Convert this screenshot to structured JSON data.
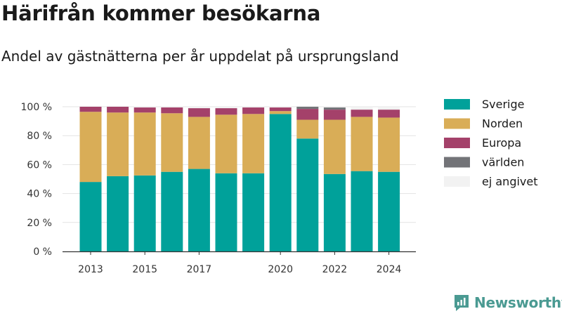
{
  "title": "Härifrån kommer besökarna",
  "subtitle": "Andel av gästnätterna per år uppdelat på ursprungsland",
  "brand": {
    "name": "Newsworthy",
    "icon": "bar-chart-logo-icon"
  },
  "chart_data": {
    "type": "bar",
    "stacked": true,
    "categories": [
      "2013",
      "2014",
      "2015",
      "2016",
      "2017",
      "2018",
      "2019",
      "2020",
      "2021",
      "2022",
      "2023",
      "2024"
    ],
    "x_tick_labels": [
      "2013",
      "",
      "2015",
      "",
      "2017",
      "",
      "",
      "2020",
      "",
      "2022",
      "",
      "2024"
    ],
    "y_tick_labels": [
      "0 %",
      "20 %",
      "40 %",
      "60 %",
      "80 %",
      "100 %"
    ],
    "ylim": [
      0,
      100
    ],
    "grid": true,
    "legend_position": "right",
    "series": [
      {
        "name": "Sverige",
        "color": "#00a19a",
        "values": [
          48,
          52,
          52.5,
          55,
          57,
          54,
          54,
          95,
          78,
          53.5,
          55.5,
          55
        ]
      },
      {
        "name": "Norden",
        "color": "#d9ad57",
        "values": [
          48.5,
          44,
          43.5,
          40.5,
          36,
          40.5,
          41,
          2,
          13,
          37.5,
          37.5,
          37.5
        ]
      },
      {
        "name": "Europa",
        "color": "#a4416a",
        "values": [
          3.5,
          4,
          3.5,
          4,
          6,
          4.5,
          4.5,
          2.5,
          7.5,
          7,
          5,
          5.5
        ]
      },
      {
        "name": "världen",
        "color": "#737478",
        "values": [
          0,
          0,
          0,
          0,
          0,
          0,
          0,
          0,
          1.5,
          1.5,
          0,
          0
        ]
      },
      {
        "name": "ej angivet",
        "color": "#f2f2f2",
        "values": [
          0,
          0,
          0.5,
          0,
          1,
          1,
          0.5,
          0.5,
          0,
          0.5,
          2,
          2
        ]
      }
    ]
  }
}
